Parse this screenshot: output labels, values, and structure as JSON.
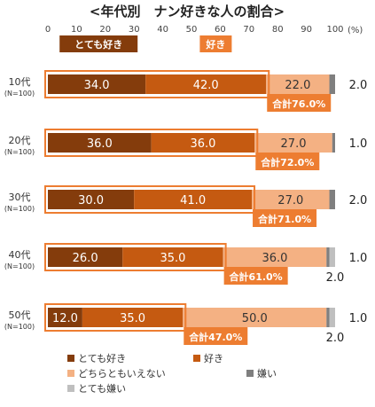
{
  "chart_data": {
    "type": "bar",
    "orientation": "horizontal",
    "stacked": true,
    "title": "<年代別　ナン好きな人の割合>",
    "xlim": [
      0,
      100
    ],
    "x_ticks": [
      "0",
      "10",
      "20",
      "30",
      "40",
      "50",
      "60",
      "70",
      "80",
      "90",
      "100"
    ],
    "unit_label": "(%)",
    "categories": [
      "10代",
      "20代",
      "30代",
      "40代",
      "50代"
    ],
    "category_notes": [
      "(N=100)",
      "(N=100)",
      "(N=100)",
      "(N=100)",
      "(N=100)"
    ],
    "series": [
      {
        "name": "とても好き",
        "color": "#843C0C",
        "values": [
          34.0,
          36.0,
          30.0,
          26.0,
          12.0
        ]
      },
      {
        "name": "好き",
        "color": "#C55A11",
        "values": [
          42.0,
          36.0,
          41.0,
          35.0,
          35.0
        ]
      },
      {
        "name": "どちらともいえない",
        "color": "#F4B183",
        "values": [
          22.0,
          27.0,
          27.0,
          36.0,
          50.0
        ]
      },
      {
        "name": "嫌い",
        "color": "#7F7F7F",
        "values": [
          2.0,
          1.0,
          2.0,
          1.0,
          1.0
        ]
      },
      {
        "name": "とても嫌い",
        "color": "#BFBFBF",
        "values": [
          0.0,
          0.0,
          0.0,
          2.0,
          2.0
        ]
      }
    ],
    "totals": [
      "合計76.0%",
      "合計72.0%",
      "合計71.0%",
      "合計61.0%",
      "合計47.0%"
    ],
    "series_labels": {
      "とても好き": "とても好き",
      "好き": "好き"
    },
    "highlight_color": "#ED7D31",
    "grid": false,
    "legend_position": "bottom"
  }
}
